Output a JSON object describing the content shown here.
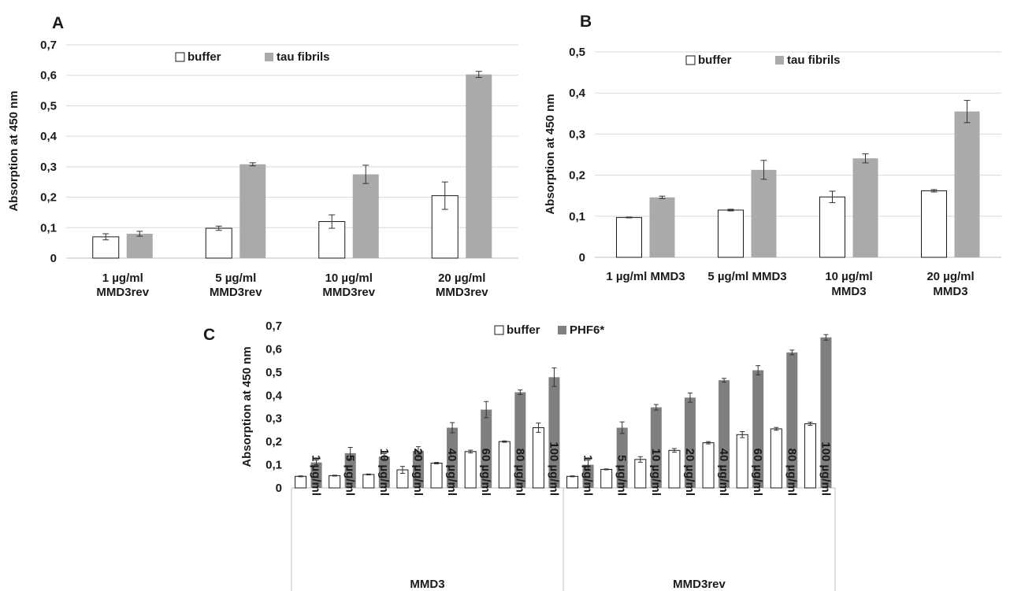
{
  "panels": {
    "A": "A",
    "B": "B",
    "C": "C"
  },
  "colors": {
    "buffer": "#ffffff",
    "tau_fibrils": "#aaaaaa",
    "phf6": "#7f7f7f",
    "grid": "#d9d9d9",
    "axis": "#bfbfbf"
  },
  "chart_data": [
    {
      "panel": "A",
      "type": "bar",
      "ylabel": "Absorption at 450 nm",
      "ylim": [
        0,
        0.7
      ],
      "yticks": [
        "0",
        "0,1",
        "0,2",
        "0,3",
        "0,4",
        "0,5",
        "0,6",
        "0,7"
      ],
      "grid": true,
      "legend_position": "top-center",
      "categories": [
        [
          "1 µg/ml",
          "MMD3rev"
        ],
        [
          "5 µg/ml",
          "MMD3rev"
        ],
        [
          "10 µg/ml",
          "MMD3rev"
        ],
        [
          "20 µg/ml",
          "MMD3rev"
        ]
      ],
      "series": [
        {
          "name": "buffer",
          "values": [
            0.07,
            0.098,
            0.12,
            0.205
          ],
          "errors": [
            0.01,
            0.007,
            0.022,
            0.045
          ]
        },
        {
          "name": "tau fibrils",
          "values": [
            0.08,
            0.308,
            0.275,
            0.603
          ],
          "errors": [
            0.008,
            0.005,
            0.03,
            0.01
          ]
        }
      ]
    },
    {
      "panel": "B",
      "type": "bar",
      "ylabel": "Absorption at 450 nm",
      "ylim": [
        0,
        0.5
      ],
      "yticks": [
        "0",
        "0,1",
        "0,2",
        "0,3",
        "0,4",
        "0,5"
      ],
      "grid": true,
      "legend_position": "top-center",
      "categories": [
        [
          "1 µg/ml MMD3"
        ],
        [
          "5 µg/ml MMD3"
        ],
        [
          "10 µg/ml",
          "MMD3"
        ],
        [
          "20 µg/ml",
          "MMD3"
        ]
      ],
      "series": [
        {
          "name": "buffer",
          "values": [
            0.097,
            0.115,
            0.147,
            0.162
          ],
          "errors": [
            0.001,
            0.002,
            0.014,
            0.003
          ]
        },
        {
          "name": "tau fibrils",
          "values": [
            0.146,
            0.213,
            0.241,
            0.355
          ],
          "errors": [
            0.003,
            0.023,
            0.011,
            0.027
          ]
        }
      ]
    },
    {
      "panel": "C",
      "type": "bar",
      "ylabel": "Absorption at 450 nm",
      "ylim": [
        0,
        0.7
      ],
      "yticks": [
        "0",
        "0,1",
        "0,2",
        "0,3",
        "0,4",
        "0,5",
        "0,6",
        "0,7"
      ],
      "grid": false,
      "legend_position": "top-center",
      "categories": [
        "1 µg/ml",
        "5 µg/ml",
        "10 µg/ml",
        "20 µg/ml",
        "40 µg/ml",
        "60 µg/ml",
        "80 µg/ml",
        "100 µg/ml",
        "1 µg/ml",
        "5 µg/ml",
        "10 µg/ml",
        "20 µg/ml",
        "40 µg/ml",
        "60 µg/ml",
        "80 µg/ml",
        "100 µg/ml"
      ],
      "groups": [
        {
          "name": "MMD3",
          "count": 8
        },
        {
          "name": "MMD3rev",
          "count": 8
        }
      ],
      "series": [
        {
          "name": "buffer",
          "values": [
            0.05,
            0.053,
            0.058,
            0.078,
            0.107,
            0.157,
            0.2,
            0.26,
            0.05,
            0.08,
            0.123,
            0.162,
            0.195,
            0.23,
            0.255,
            0.277
          ],
          "errors": [
            0.002,
            0.002,
            0.002,
            0.015,
            0.003,
            0.006,
            0.003,
            0.02,
            0.002,
            0.002,
            0.012,
            0.008,
            0.005,
            0.013,
            0.006,
            0.007
          ]
        },
        {
          "name": "PHF6*",
          "values": [
            0.11,
            0.15,
            0.135,
            0.16,
            0.26,
            0.338,
            0.413,
            0.478,
            0.1,
            0.26,
            0.348,
            0.39,
            0.465,
            0.508,
            0.585,
            0.65
          ],
          "errors": [
            0.01,
            0.025,
            0.013,
            0.018,
            0.022,
            0.035,
            0.01,
            0.04,
            0.02,
            0.025,
            0.012,
            0.02,
            0.008,
            0.02,
            0.01,
            0.012
          ]
        }
      ]
    }
  ]
}
